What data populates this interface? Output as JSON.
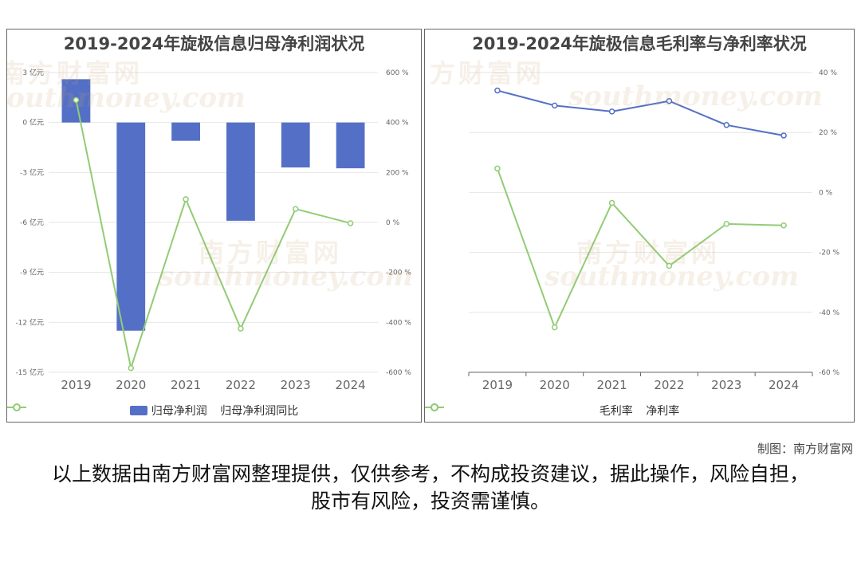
{
  "watermark": {
    "brand": "南方财富网",
    "site": "southmoney.com"
  },
  "chart_data": [
    {
      "type": "bar",
      "title": "2019-2024年旋极信息归母净利润状况",
      "categories": [
        "2019",
        "2020",
        "2021",
        "2022",
        "2023",
        "2024"
      ],
      "series": [
        {
          "name": "归母净利润",
          "kind": "bar",
          "axis": "left",
          "values": [
            2.6,
            -12.5,
            -1.1,
            -5.9,
            -2.7,
            -2.75
          ]
        },
        {
          "name": "归母净利润同比",
          "kind": "line",
          "axis": "right",
          "values": [
            490,
            -583,
            93,
            -425,
            54,
            -3
          ]
        }
      ],
      "y_left": {
        "min": -15,
        "max": 3,
        "step": 3,
        "unit": " 亿元"
      },
      "y_right": {
        "min": -600,
        "max": 600,
        "step": 200,
        "unit": " %"
      },
      "colors": {
        "bar": "#5470c6",
        "line": "#91cc75"
      },
      "legend": "bottom-center",
      "grid": true
    },
    {
      "type": "line",
      "title": "2019-2024年旋极信息毛利率与净利率状况",
      "categories": [
        "2019",
        "2020",
        "2021",
        "2022",
        "2023",
        "2024"
      ],
      "series": [
        {
          "name": "毛利率",
          "values": [
            34,
            29,
            27,
            30.5,
            22.5,
            19
          ]
        },
        {
          "name": "净利率",
          "values": [
            8,
            -45,
            -3.5,
            -24.5,
            -10.5,
            -11
          ]
        }
      ],
      "y_right": {
        "min": -60,
        "max": 40,
        "step": 20,
        "unit": " %"
      },
      "colors": {
        "line1": "#5470c6",
        "line2": "#91cc75"
      },
      "legend": "bottom-center",
      "grid": true
    }
  ],
  "footer": {
    "credit": "制图：南方财富网",
    "disclaimer": "以上数据由南方财富网整理提供，仅供参考，不构成投资建议，据此操作，风险自担，股市有风险，投资需谨慎。"
  }
}
